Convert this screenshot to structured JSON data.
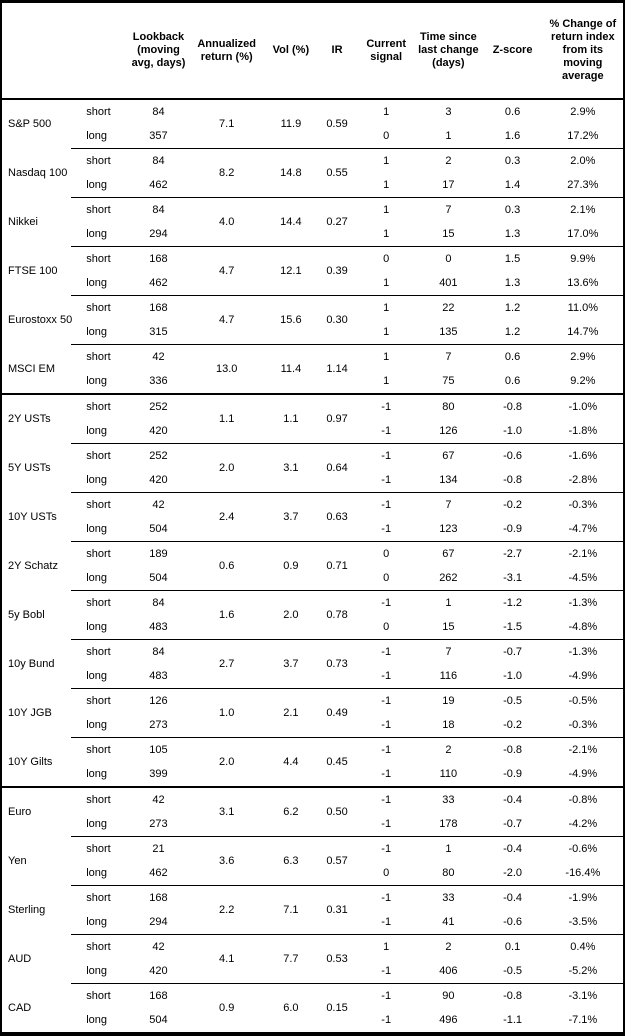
{
  "table": {
    "headers": {
      "asset": "",
      "horizon": "",
      "lookback": "Lookback\n(moving\navg, days)",
      "annualized_return": "Annualized\nreturn (%)",
      "vol": "Vol (%)",
      "ir": "IR",
      "current_signal": "Current\nsignal",
      "time_since": "Time since\nlast change\n(days)",
      "zscore": "Z-score",
      "pct_change": "% Change of\nreturn index\nfrom its\nmoving\naverage"
    },
    "row_labels": {
      "short": "short",
      "long": "long"
    },
    "groups": [
      {
        "name": "S&P 500",
        "section_start": false,
        "annualized_return": "7.1",
        "vol": "11.9",
        "ir": "0.59",
        "short": {
          "lookback": "84",
          "signal": "1",
          "time_since": "3",
          "zscore": "0.6",
          "pct_change": "2.9%"
        },
        "long": {
          "lookback": "357",
          "signal": "0",
          "time_since": "1",
          "zscore": "1.6",
          "pct_change": "17.2%"
        }
      },
      {
        "name": "Nasdaq 100",
        "section_start": false,
        "annualized_return": "8.2",
        "vol": "14.8",
        "ir": "0.55",
        "short": {
          "lookback": "84",
          "signal": "1",
          "time_since": "2",
          "zscore": "0.3",
          "pct_change": "2.0%"
        },
        "long": {
          "lookback": "462",
          "signal": "1",
          "time_since": "17",
          "zscore": "1.4",
          "pct_change": "27.3%"
        }
      },
      {
        "name": "Nikkei",
        "section_start": false,
        "annualized_return": "4.0",
        "vol": "14.4",
        "ir": "0.27",
        "short": {
          "lookback": "84",
          "signal": "1",
          "time_since": "7",
          "zscore": "0.3",
          "pct_change": "2.1%"
        },
        "long": {
          "lookback": "294",
          "signal": "1",
          "time_since": "15",
          "zscore": "1.3",
          "pct_change": "17.0%"
        }
      },
      {
        "name": "FTSE 100",
        "section_start": false,
        "annualized_return": "4.7",
        "vol": "12.1",
        "ir": "0.39",
        "short": {
          "lookback": "168",
          "signal": "0",
          "time_since": "0",
          "zscore": "1.5",
          "pct_change": "9.9%"
        },
        "long": {
          "lookback": "462",
          "signal": "1",
          "time_since": "401",
          "zscore": "1.3",
          "pct_change": "13.6%"
        }
      },
      {
        "name": "Eurostoxx 50",
        "section_start": false,
        "annualized_return": "4.7",
        "vol": "15.6",
        "ir": "0.30",
        "short": {
          "lookback": "168",
          "signal": "1",
          "time_since": "22",
          "zscore": "1.2",
          "pct_change": "11.0%"
        },
        "long": {
          "lookback": "315",
          "signal": "1",
          "time_since": "135",
          "zscore": "1.2",
          "pct_change": "14.7%"
        }
      },
      {
        "name": "MSCI EM",
        "section_start": false,
        "annualized_return": "13.0",
        "vol": "11.4",
        "ir": "1.14",
        "short": {
          "lookback": "42",
          "signal": "1",
          "time_since": "7",
          "zscore": "0.6",
          "pct_change": "2.9%"
        },
        "long": {
          "lookback": "336",
          "signal": "1",
          "time_since": "75",
          "zscore": "0.6",
          "pct_change": "9.2%"
        }
      },
      {
        "name": "2Y USTs",
        "section_start": true,
        "annualized_return": "1.1",
        "vol": "1.1",
        "ir": "0.97",
        "short": {
          "lookback": "252",
          "signal": "-1",
          "time_since": "80",
          "zscore": "-0.8",
          "pct_change": "-1.0%"
        },
        "long": {
          "lookback": "420",
          "signal": "-1",
          "time_since": "126",
          "zscore": "-1.0",
          "pct_change": "-1.8%"
        }
      },
      {
        "name": "5Y USTs",
        "section_start": false,
        "annualized_return": "2.0",
        "vol": "3.1",
        "ir": "0.64",
        "short": {
          "lookback": "252",
          "signal": "-1",
          "time_since": "67",
          "zscore": "-0.6",
          "pct_change": "-1.6%"
        },
        "long": {
          "lookback": "420",
          "signal": "-1",
          "time_since": "134",
          "zscore": "-0.8",
          "pct_change": "-2.8%"
        }
      },
      {
        "name": "10Y USTs",
        "section_start": false,
        "annualized_return": "2.4",
        "vol": "3.7",
        "ir": "0.63",
        "short": {
          "lookback": "42",
          "signal": "-1",
          "time_since": "7",
          "zscore": "-0.2",
          "pct_change": "-0.3%"
        },
        "long": {
          "lookback": "504",
          "signal": "-1",
          "time_since": "123",
          "zscore": "-0.9",
          "pct_change": "-4.7%"
        }
      },
      {
        "name": "2Y Schatz",
        "section_start": false,
        "annualized_return": "0.6",
        "vol": "0.9",
        "ir": "0.71",
        "short": {
          "lookback": "189",
          "signal": "0",
          "time_since": "67",
          "zscore": "-2.7",
          "pct_change": "-2.1%"
        },
        "long": {
          "lookback": "504",
          "signal": "0",
          "time_since": "262",
          "zscore": "-3.1",
          "pct_change": "-4.5%"
        }
      },
      {
        "name": "5y Bobl",
        "section_start": false,
        "annualized_return": "1.6",
        "vol": "2.0",
        "ir": "0.78",
        "short": {
          "lookback": "84",
          "signal": "-1",
          "time_since": "1",
          "zscore": "-1.2",
          "pct_change": "-1.3%"
        },
        "long": {
          "lookback": "483",
          "signal": "0",
          "time_since": "15",
          "zscore": "-1.5",
          "pct_change": "-4.8%"
        }
      },
      {
        "name": "10y Bund",
        "section_start": false,
        "annualized_return": "2.7",
        "vol": "3.7",
        "ir": "0.73",
        "short": {
          "lookback": "84",
          "signal": "-1",
          "time_since": "7",
          "zscore": "-0.7",
          "pct_change": "-1.3%"
        },
        "long": {
          "lookback": "483",
          "signal": "-1",
          "time_since": "116",
          "zscore": "-1.0",
          "pct_change": "-4.9%"
        }
      },
      {
        "name": "10Y JGB",
        "section_start": false,
        "annualized_return": "1.0",
        "vol": "2.1",
        "ir": "0.49",
        "short": {
          "lookback": "126",
          "signal": "-1",
          "time_since": "19",
          "zscore": "-0.5",
          "pct_change": "-0.5%"
        },
        "long": {
          "lookback": "273",
          "signal": "-1",
          "time_since": "18",
          "zscore": "-0.2",
          "pct_change": "-0.3%"
        }
      },
      {
        "name": "10Y Gilts",
        "section_start": false,
        "annualized_return": "2.0",
        "vol": "4.4",
        "ir": "0.45",
        "short": {
          "lookback": "105",
          "signal": "-1",
          "time_since": "2",
          "zscore": "-0.8",
          "pct_change": "-2.1%"
        },
        "long": {
          "lookback": "399",
          "signal": "-1",
          "time_since": "110",
          "zscore": "-0.9",
          "pct_change": "-4.9%"
        }
      },
      {
        "name": "Euro",
        "section_start": true,
        "annualized_return": "3.1",
        "vol": "6.2",
        "ir": "0.50",
        "short": {
          "lookback": "42",
          "signal": "-1",
          "time_since": "33",
          "zscore": "-0.4",
          "pct_change": "-0.8%"
        },
        "long": {
          "lookback": "273",
          "signal": "-1",
          "time_since": "178",
          "zscore": "-0.7",
          "pct_change": "-4.2%"
        }
      },
      {
        "name": "Yen",
        "section_start": false,
        "annualized_return": "3.6",
        "vol": "6.3",
        "ir": "0.57",
        "short": {
          "lookback": "21",
          "signal": "-1",
          "time_since": "1",
          "zscore": "-0.4",
          "pct_change": "-0.6%"
        },
        "long": {
          "lookback": "462",
          "signal": "0",
          "time_since": "80",
          "zscore": "-2.0",
          "pct_change": "-16.4%"
        }
      },
      {
        "name": "Sterling",
        "section_start": false,
        "annualized_return": "2.2",
        "vol": "7.1",
        "ir": "0.31",
        "short": {
          "lookback": "168",
          "signal": "-1",
          "time_since": "33",
          "zscore": "-0.4",
          "pct_change": "-1.9%"
        },
        "long": {
          "lookback": "294",
          "signal": "-1",
          "time_since": "41",
          "zscore": "-0.6",
          "pct_change": "-3.5%"
        }
      },
      {
        "name": "AUD",
        "section_start": false,
        "annualized_return": "4.1",
        "vol": "7.7",
        "ir": "0.53",
        "short": {
          "lookback": "42",
          "signal": "1",
          "time_since": "2",
          "zscore": "0.1",
          "pct_change": "0.4%"
        },
        "long": {
          "lookback": "420",
          "signal": "-1",
          "time_since": "406",
          "zscore": "-0.5",
          "pct_change": "-5.2%"
        }
      },
      {
        "name": "CAD",
        "section_start": false,
        "annualized_return": "0.9",
        "vol": "6.0",
        "ir": "0.15",
        "short": {
          "lookback": "168",
          "signal": "-1",
          "time_since": "90",
          "zscore": "-0.8",
          "pct_change": "-3.1%"
        },
        "long": {
          "lookback": "504",
          "signal": "-1",
          "time_since": "496",
          "zscore": "-1.1",
          "pct_change": "-7.1%"
        }
      }
    ]
  }
}
